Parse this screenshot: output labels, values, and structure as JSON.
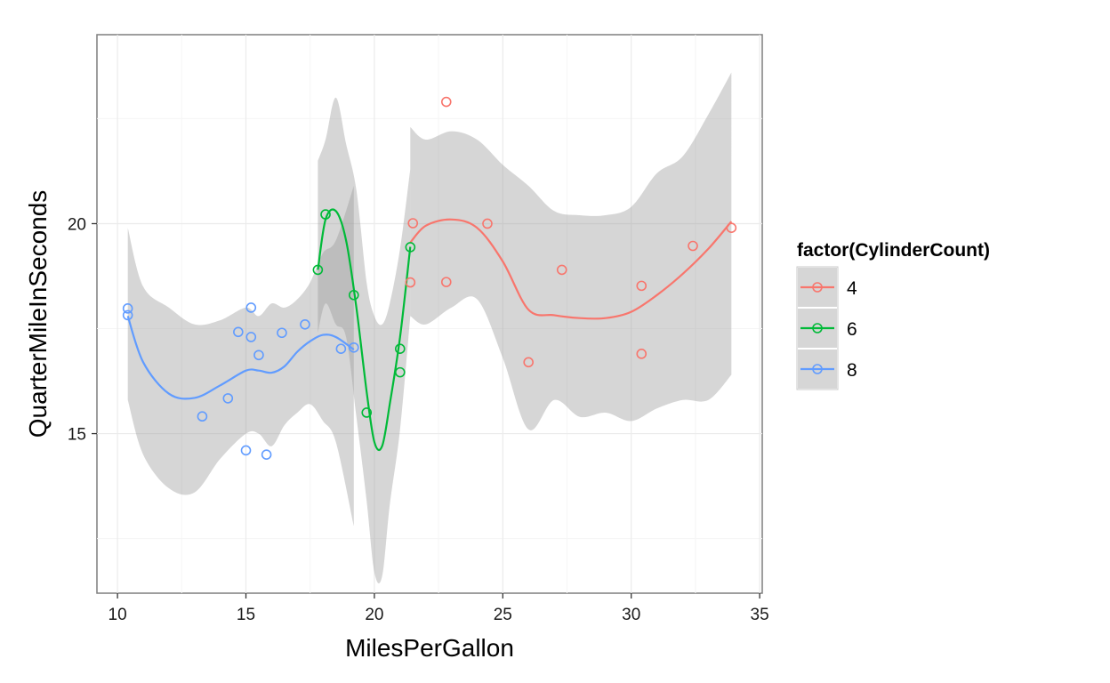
{
  "chart_data": {
    "type": "scatter",
    "xlabel": "MilesPerGallon",
    "ylabel": "QuarterMileInSeconds",
    "xlim": [
      9.2,
      35.1
    ],
    "ylim": [
      11.2,
      24.5
    ],
    "xticks": [
      10,
      15,
      20,
      25,
      30,
      35
    ],
    "xtick_labels": [
      "10",
      "15",
      "20",
      "25",
      "30",
      "35"
    ],
    "yticks": [
      15,
      20
    ],
    "ytick_labels": [
      "15",
      "20"
    ],
    "grid": true,
    "legend": {
      "title": "factor(CylinderCount)",
      "placement": "right"
    },
    "series": [
      {
        "name": "4",
        "color": "#F8766D",
        "points": [
          [
            22.8,
            18.61
          ],
          [
            24.4,
            20.0
          ],
          [
            22.8,
            22.9
          ],
          [
            32.4,
            19.47
          ],
          [
            30.4,
            18.52
          ],
          [
            33.9,
            19.9
          ],
          [
            21.5,
            20.01
          ],
          [
            27.3,
            18.9
          ],
          [
            26.0,
            16.7
          ],
          [
            30.4,
            16.9
          ],
          [
            21.4,
            18.6
          ]
        ],
        "smooth": [
          [
            21.4,
            19.55
          ],
          [
            22.0,
            19.95
          ],
          [
            23.0,
            20.1
          ],
          [
            24.0,
            19.9
          ],
          [
            25.0,
            19.1
          ],
          [
            26.0,
            17.95
          ],
          [
            27.0,
            17.82
          ],
          [
            28.0,
            17.75
          ],
          [
            29.0,
            17.75
          ],
          [
            30.0,
            17.9
          ],
          [
            31.0,
            18.3
          ],
          [
            32.0,
            18.8
          ],
          [
            33.0,
            19.4
          ],
          [
            33.9,
            20.05
          ]
        ],
        "band": [
          [
            21.4,
            17.8,
            22.3
          ],
          [
            22.0,
            17.6,
            22.0
          ],
          [
            23.0,
            18.0,
            22.2
          ],
          [
            24.0,
            18.2,
            22.0
          ],
          [
            25.0,
            16.8,
            21.4
          ],
          [
            26.0,
            15.1,
            20.9
          ],
          [
            27.0,
            15.8,
            20.3
          ],
          [
            28.0,
            15.4,
            20.2
          ],
          [
            29.0,
            15.5,
            20.2
          ],
          [
            30.0,
            15.3,
            20.4
          ],
          [
            31.0,
            15.6,
            21.2
          ],
          [
            32.0,
            15.8,
            21.6
          ],
          [
            33.0,
            15.8,
            22.6
          ],
          [
            33.9,
            16.4,
            23.6
          ]
        ]
      },
      {
        "name": "6",
        "color": "#00BA38",
        "points": [
          [
            21.0,
            16.46
          ],
          [
            21.0,
            17.02
          ],
          [
            21.4,
            19.44
          ],
          [
            18.1,
            20.22
          ],
          [
            19.2,
            18.3
          ],
          [
            17.8,
            18.9
          ],
          [
            19.7,
            15.5
          ]
        ],
        "smooth": [
          [
            17.8,
            18.9
          ],
          [
            18.1,
            20.1
          ],
          [
            18.5,
            20.3
          ],
          [
            18.9,
            19.6
          ],
          [
            19.3,
            18.0
          ],
          [
            19.7,
            16.0
          ],
          [
            20.0,
            14.8
          ],
          [
            20.3,
            14.7
          ],
          [
            20.6,
            15.7
          ],
          [
            21.0,
            17.3
          ],
          [
            21.4,
            19.45
          ]
        ],
        "band": [
          [
            17.8,
            17.4,
            21.5
          ],
          [
            18.1,
            18.1,
            22.0
          ],
          [
            18.5,
            17.6,
            23.0
          ],
          [
            18.9,
            17.3,
            21.9
          ],
          [
            19.3,
            15.4,
            20.8
          ],
          [
            19.7,
            13.4,
            18.6
          ],
          [
            20.0,
            11.7,
            17.8
          ],
          [
            20.3,
            11.6,
            17.6
          ],
          [
            20.6,
            13.3,
            18.1
          ],
          [
            21.0,
            15.1,
            19.4
          ],
          [
            21.4,
            17.8,
            21.3
          ]
        ]
      },
      {
        "name": "8",
        "color": "#619CFF",
        "points": [
          [
            18.7,
            17.02
          ],
          [
            14.3,
            15.84
          ],
          [
            16.4,
            17.4
          ],
          [
            17.3,
            17.6
          ],
          [
            15.2,
            18.0
          ],
          [
            10.4,
            17.98
          ],
          [
            10.4,
            17.82
          ],
          [
            14.7,
            17.42
          ],
          [
            15.5,
            16.87
          ],
          [
            15.2,
            17.3
          ],
          [
            13.3,
            15.41
          ],
          [
            19.2,
            17.05
          ],
          [
            15.8,
            14.5
          ],
          [
            15.0,
            14.6
          ]
        ],
        "smooth": [
          [
            10.4,
            17.8
          ],
          [
            11.0,
            16.7
          ],
          [
            12.0,
            15.95
          ],
          [
            13.0,
            15.85
          ],
          [
            14.0,
            16.15
          ],
          [
            15.0,
            16.5
          ],
          [
            15.5,
            16.5
          ],
          [
            16.0,
            16.45
          ],
          [
            16.5,
            16.6
          ],
          [
            17.0,
            16.95
          ],
          [
            17.5,
            17.2
          ],
          [
            18.0,
            17.35
          ],
          [
            18.5,
            17.3
          ],
          [
            19.2,
            17.0
          ]
        ],
        "band": [
          [
            10.4,
            15.8,
            19.9
          ],
          [
            11.0,
            14.5,
            18.5
          ],
          [
            12.0,
            13.7,
            18.0
          ],
          [
            13.0,
            13.6,
            17.6
          ],
          [
            14.0,
            14.4,
            17.7
          ],
          [
            15.0,
            15.0,
            18.0
          ],
          [
            15.5,
            15.0,
            17.8
          ],
          [
            16.0,
            14.7,
            18.1
          ],
          [
            16.5,
            15.2,
            18.0
          ],
          [
            17.0,
            15.5,
            18.2
          ],
          [
            17.5,
            15.7,
            18.6
          ],
          [
            18.0,
            15.3,
            19.3
          ],
          [
            18.5,
            14.8,
            19.6
          ],
          [
            19.2,
            12.8,
            20.9
          ]
        ]
      }
    ]
  }
}
